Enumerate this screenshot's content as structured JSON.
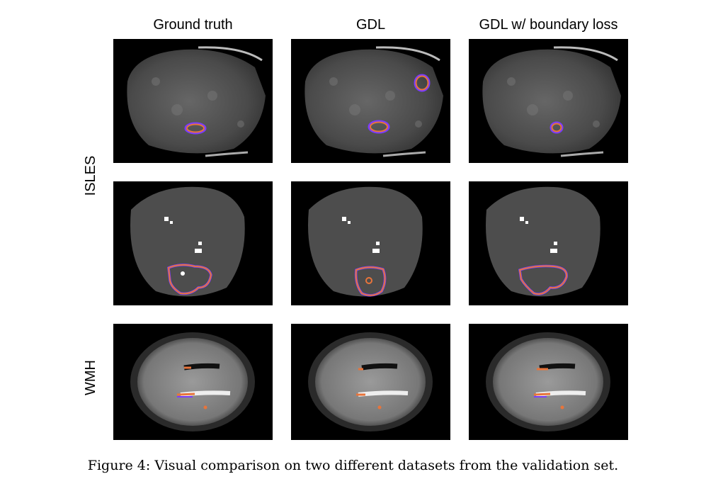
{
  "figure": {
    "columns": [
      "Ground truth",
      "GDL",
      "GDL w/ boundary loss"
    ],
    "rows": [
      "ISLES",
      "WMH"
    ],
    "caption": "Figure 4: Visual comparison on two different datasets from the validation set."
  },
  "colors": {
    "contour_outer": "#e8743b",
    "contour_inner": "#7a3cff",
    "background": "#000000"
  }
}
